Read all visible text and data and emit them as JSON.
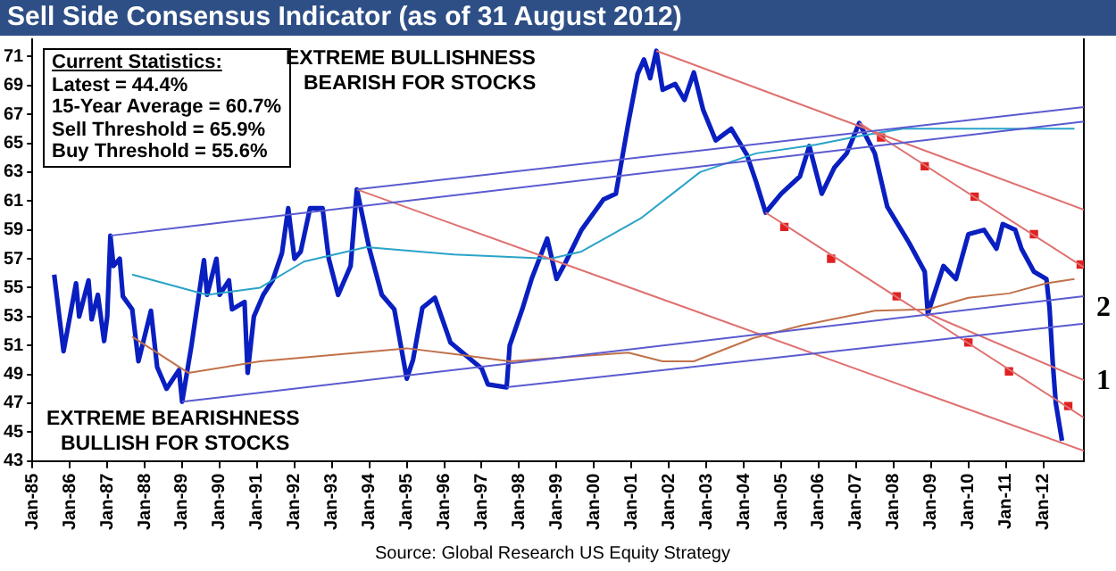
{
  "chart_data": {
    "type": "line",
    "title": "Sell Side Consensus Indicator (as of 31 August 2012)",
    "annotations": [
      "Current Statistics:",
      "Latest = 44.4%",
      "15-Year Average = 60.7%",
      "Sell Threshold = 65.9%",
      "Buy Threshold = 55.6%",
      "EXTREME BULLISHNESS",
      "BEARISH FOR STOCKS",
      "EXTREME BEARISHNESS",
      "BULLISH FOR STOCKS",
      "2",
      "1",
      "Source: Global Research US Equity Strategy"
    ],
    "xlim": [
      "1985-01",
      "2013-02"
    ],
    "xticks": [
      {
        "value": "1985-01",
        "label": "Jan-85"
      },
      {
        "value": "1986-01",
        "label": "Jan-86"
      },
      {
        "value": "1987-01",
        "label": "Jan-87"
      },
      {
        "value": "1988-01",
        "label": "Jan-88"
      },
      {
        "value": "1989-01",
        "label": "Jan-89"
      },
      {
        "value": "1990-01",
        "label": "Jan-90"
      },
      {
        "value": "1991-01",
        "label": "Jan-91"
      },
      {
        "value": "1992-01",
        "label": "Jan-92"
      },
      {
        "value": "1993-01",
        "label": "Jan-93"
      },
      {
        "value": "1994-01",
        "label": "Jan-94"
      },
      {
        "value": "1995-01",
        "label": "Jan-95"
      },
      {
        "value": "1996-01",
        "label": "Jan-96"
      },
      {
        "value": "1997-01",
        "label": "Jan-97"
      },
      {
        "value": "1998-01",
        "label": "Jan-98"
      },
      {
        "value": "1999-01",
        "label": "Jan-99"
      },
      {
        "value": "2000-01",
        "label": "Jan-00"
      },
      {
        "value": "2001-01",
        "label": "Jan-01"
      },
      {
        "value": "2002-01",
        "label": "Jan-02"
      },
      {
        "value": "2003-01",
        "label": "Jan-03"
      },
      {
        "value": "2004-01",
        "label": "Jan-04"
      },
      {
        "value": "2005-01",
        "label": "Jan-05"
      },
      {
        "value": "2006-01",
        "label": "Jan-06"
      },
      {
        "value": "2007-01",
        "label": "Jan-07"
      },
      {
        "value": "2008-01",
        "label": "Jan-08"
      },
      {
        "value": "2009-01",
        "label": "Jan-09"
      },
      {
        "value": "2010-01",
        "label": "Jan-10"
      },
      {
        "value": "2011-01",
        "label": "Jan-11"
      },
      {
        "value": "2012-01",
        "label": "Jan-12"
      }
    ],
    "ylim": [
      43,
      72.2
    ],
    "yticks": [
      43,
      45,
      47,
      49,
      51,
      53,
      55,
      57,
      59,
      61,
      63,
      65,
      67,
      69,
      71
    ],
    "grid": false,
    "legend": false,
    "series": [
      {
        "type": "line",
        "color": "#5a5ad0",
        "x": [
          "1987-02",
          "2013-02"
        ],
        "values": [
          58.6,
          66.5
        ]
      },
      {
        "type": "line",
        "color": "#5a5ad0",
        "x": [
          "1993-09",
          "2013-02"
        ],
        "values": [
          61.8,
          67.5
        ]
      },
      {
        "type": "line",
        "color": "#5a5ad0",
        "x": [
          "1989-01",
          "2013-02"
        ],
        "values": [
          47.1,
          54.4
        ]
      },
      {
        "type": "line",
        "color": "#5a5ad0",
        "x": [
          "1997-09",
          "2013-02"
        ],
        "values": [
          48.1,
          52.5
        ]
      },
      {
        "type": "line",
        "color": "#e07070",
        "x": [
          "1993-09",
          "2013-02"
        ],
        "values": [
          61.8,
          43.7
        ]
      },
      {
        "type": "line",
        "color": "#e07070",
        "x": [
          "2001-09",
          "2013-02"
        ],
        "values": [
          71.4,
          60.4
        ]
      },
      {
        "type": "line",
        "color": "#e07070",
        "x": [
          "2007-02",
          "2013-02"
        ],
        "values": [
          66.4,
          56.4
        ]
      },
      {
        "type": "line",
        "color": "#e07070",
        "x": [
          "2004-08",
          "2013-02"
        ],
        "values": [
          60.2,
          46.0
        ]
      },
      {
        "type": "line",
        "color": "#e07070",
        "x": [
          "2008-12",
          "2013-02"
        ],
        "values": [
          53.2,
          48.6
        ]
      },
      {
        "type": "line",
        "color": "#2aa3c9",
        "x": [
          "1987-09",
          "1989-09",
          "1991-02",
          "1992-04",
          "1993-12",
          "1996-04",
          "1998-11",
          "1999-09",
          "2001-04",
          "2002-11",
          "2004-05",
          "2005-12",
          "2007-02",
          "2008-04",
          "2012-11"
        ],
        "values": [
          55.9,
          54.5,
          55,
          56.8,
          57.8,
          57.3,
          57,
          57.5,
          59.8,
          63,
          64.3,
          64.9,
          65.5,
          66,
          66
        ]
      },
      {
        "type": "line",
        "color": "#c0714a",
        "x": [
          "1987-09",
          "1989-03",
          "1991-02",
          "1995-01",
          "1996-04",
          "1997-10",
          "2000-12",
          "2001-11",
          "2002-09",
          "2004-04",
          "2005-08",
          "2007-07",
          "2008-12",
          "2010-01",
          "2011-02",
          "2012-02",
          "2012-11"
        ],
        "values": [
          51.6,
          49.1,
          49.9,
          50.8,
          50.4,
          49.9,
          50.5,
          49.9,
          49.9,
          51.5,
          52.4,
          53.4,
          53.5,
          54.3,
          54.6,
          55.3,
          55.6
        ]
      },
      {
        "type": "scatter",
        "marker": "square",
        "color": "#e02020",
        "x": [
          "2007-09",
          "2008-11",
          "2010-03",
          "2011-10",
          "2013-01"
        ],
        "values": [
          65.4,
          63.4,
          61.3,
          58.7,
          56.6
        ]
      },
      {
        "type": "scatter",
        "marker": "square",
        "color": "#e02020",
        "x": [
          "2005-02",
          "2006-05",
          "2008-02",
          "2010-01",
          "2011-02",
          "2012-09"
        ],
        "values": [
          59.2,
          57,
          54.4,
          51.2,
          49.2,
          46.8
        ]
      },
      {
        "type": "line",
        "color": "#0a1fc0",
        "x": [
          "1985-08",
          "1985-11",
          "1986-03",
          "1986-04",
          "1986-07",
          "1986-08",
          "1986-10",
          "1986-12",
          "1987-01",
          "1987-02",
          "1987-03",
          "1987-05",
          "1987-06",
          "1987-09",
          "1987-11",
          "1988-03",
          "1988-05",
          "1988-08",
          "1988-12",
          "1989-01",
          "1989-04",
          "1989-08",
          "1989-09",
          "1989-12",
          "1990-01",
          "1990-04",
          "1990-05",
          "1990-09",
          "1990-10",
          "1990-12",
          "1991-03",
          "1991-06",
          "1991-09",
          "1991-11",
          "1992-01",
          "1992-03",
          "1992-06",
          "1992-10",
          "1992-12",
          "1993-03",
          "1993-07",
          "1993-09",
          "1994-01",
          "1994-05",
          "1994-09",
          "1995-01",
          "1995-03",
          "1995-06",
          "1995-10",
          "1996-03",
          "1996-08",
          "1997-01",
          "1997-03",
          "1997-09",
          "1997-10",
          "1998-02",
          "1998-05",
          "1998-10",
          "1999-01",
          "1999-04",
          "1999-09",
          "2000-04",
          "2000-08",
          "2000-12",
          "2001-03",
          "2001-05",
          "2001-07",
          "2001-09",
          "2001-11",
          "2002-03",
          "2002-06",
          "2002-09",
          "2002-12",
          "2003-04",
          "2003-09",
          "2004-02",
          "2004-05",
          "2004-08",
          "2005-01",
          "2005-07",
          "2005-10",
          "2006-02",
          "2006-06",
          "2006-10",
          "2007-02",
          "2007-07",
          "2007-11",
          "2008-06",
          "2008-11",
          "2008-12",
          "2009-05",
          "2009-09",
          "2010-01",
          "2010-06",
          "2010-10",
          "2010-12",
          "2011-04",
          "2011-06",
          "2011-10",
          "2012-02",
          "2012-03",
          "2012-04",
          "2012-05",
          "2012-07"
        ],
        "values": [
          55.9,
          50.6,
          55.3,
          53,
          55.5,
          52.8,
          54.5,
          51.3,
          53,
          58.6,
          56.5,
          57,
          54.4,
          53.5,
          49.9,
          53.4,
          49.5,
          48,
          49.3,
          47.1,
          51,
          56.9,
          54.5,
          57,
          54.5,
          55.5,
          53.5,
          54,
          49.1,
          53,
          54.5,
          55.5,
          57.4,
          60.5,
          57,
          57.5,
          60.5,
          60.5,
          57,
          54.5,
          56.5,
          61.8,
          57.7,
          54.5,
          53.5,
          48.7,
          50,
          53.6,
          54.3,
          51.2,
          50.3,
          49.4,
          48.3,
          48.1,
          51,
          53.5,
          55.6,
          58.4,
          55.6,
          56.8,
          59,
          61.1,
          61.5,
          66.4,
          69.8,
          70.8,
          69.5,
          71.4,
          68.7,
          69.1,
          68,
          69.9,
          67.3,
          65.2,
          66,
          64.2,
          62.3,
          60.2,
          61.5,
          62.7,
          64.8,
          61.5,
          63.3,
          64.3,
          66.4,
          64.3,
          60.6,
          58.1,
          56.1,
          53.2,
          56.5,
          55.6,
          58.7,
          59,
          57.7,
          59.4,
          59,
          57.7,
          56.1,
          55.6,
          53.6,
          49.9,
          47,
          44.4
        ]
      }
    ]
  }
}
